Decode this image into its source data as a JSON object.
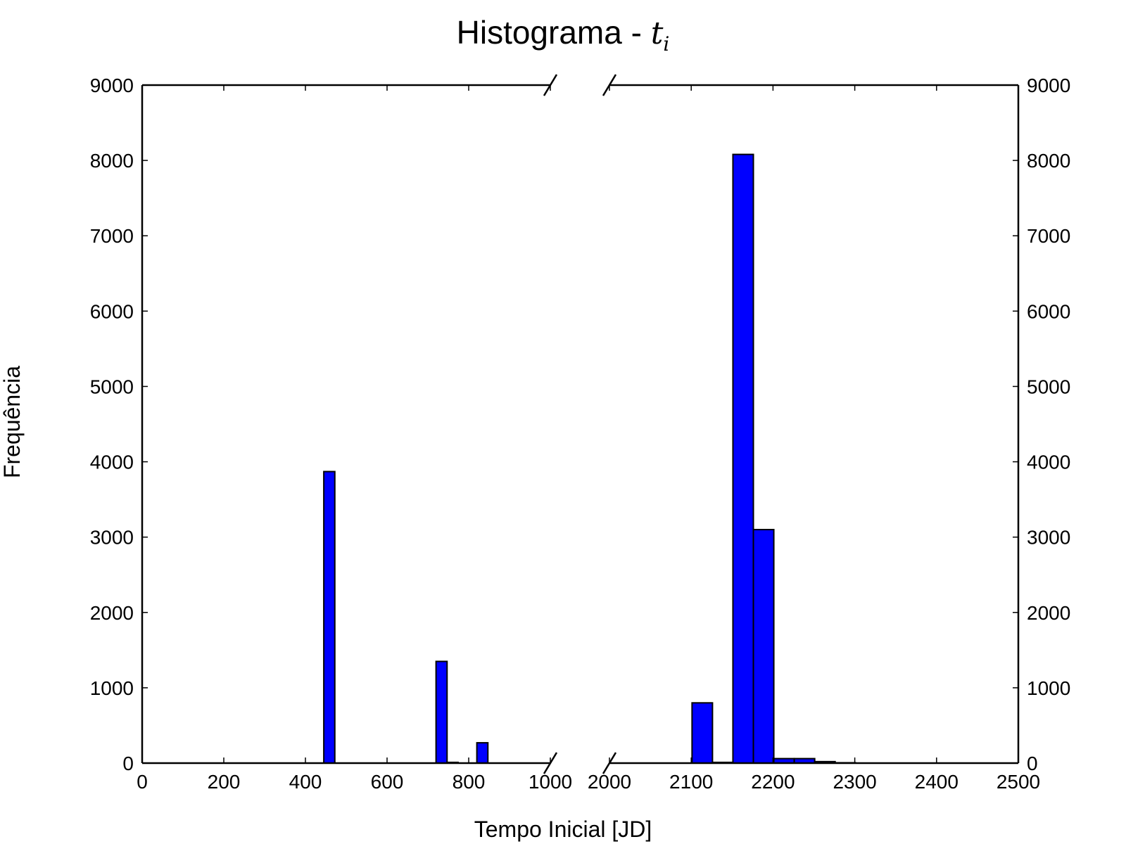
{
  "chart_data": {
    "type": "bar",
    "title": {
      "text": "Histograma - ",
      "math_symbol": "t",
      "math_subscript": "i"
    },
    "xlabel": "Tempo Inicial [JD]",
    "ylabel": "Frequência",
    "ylim": [
      0,
      9000
    ],
    "y_ticks": [
      "0",
      "1000",
      "2000",
      "3000",
      "4000",
      "5000",
      "6000",
      "7000",
      "8000",
      "9000"
    ],
    "broken_x_axis": true,
    "grid": false,
    "bar_color": "#0000ff",
    "panels": [
      {
        "xlim": [
          0,
          1000
        ],
        "x_ticks": [
          "0",
          "200",
          "400",
          "600",
          "800",
          "1000"
        ],
        "bins": [
          {
            "x0": 445,
            "x1": 472,
            "count": 3870
          },
          {
            "x0": 720,
            "x1": 747,
            "count": 1350
          },
          {
            "x0": 747,
            "x1": 774,
            "count": 10
          },
          {
            "x0": 820,
            "x1": 847,
            "count": 270
          }
        ]
      },
      {
        "xlim": [
          2000,
          2500
        ],
        "x_ticks": [
          "2000",
          "2100",
          "2200",
          "2300",
          "2400",
          "2500"
        ],
        "bins": [
          {
            "x0": 2101,
            "x1": 2126,
            "count": 800
          },
          {
            "x0": 2126,
            "x1": 2151,
            "count": 10
          },
          {
            "x0": 2151,
            "x1": 2176,
            "count": 8080
          },
          {
            "x0": 2176,
            "x1": 2201,
            "count": 3100
          },
          {
            "x0": 2201,
            "x1": 2226,
            "count": 60
          },
          {
            "x0": 2226,
            "x1": 2251,
            "count": 60
          },
          {
            "x0": 2251,
            "x1": 2276,
            "count": 20
          },
          {
            "x0": 2276,
            "x1": 2301,
            "count": 5
          }
        ]
      }
    ]
  }
}
